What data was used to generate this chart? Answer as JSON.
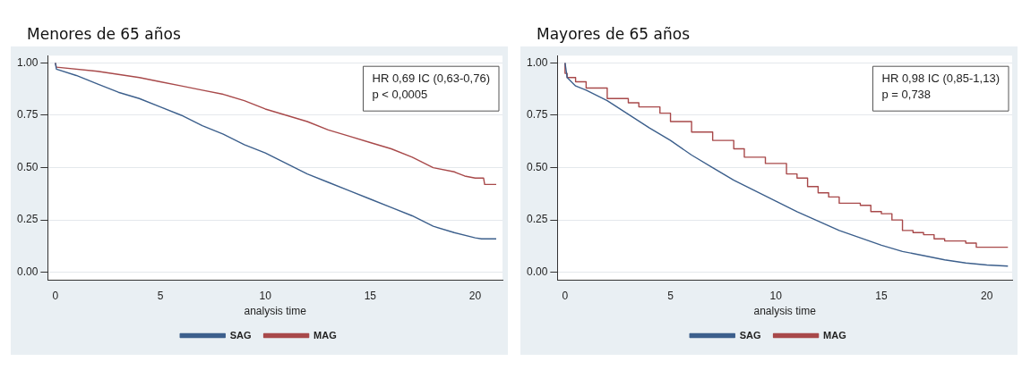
{
  "chart_data": [
    {
      "type": "line",
      "title": "Menores de 65 años",
      "xlabel": "analysis time",
      "annotations": [
        "HR 0,69 IC (0,63-0,76)",
        "p < 0,0005"
      ],
      "xlim": [
        -0.36,
        21.3
      ],
      "ylim": [
        -0.036,
        1.035
      ],
      "xticks": [
        0,
        5,
        10,
        15,
        20
      ],
      "yticks": [
        {
          "value": 0,
          "label": "0.00"
        },
        {
          "value": 0.25,
          "label": "0.25"
        },
        {
          "value": 0.5,
          "label": "0.50"
        },
        {
          "value": 0.75,
          "label": "0.75"
        },
        {
          "value": 1,
          "label": "1.00"
        }
      ],
      "grid": "y",
      "legend": "bottom",
      "marker": "none",
      "series": [
        {
          "name": "SAG",
          "color": "#3c5f8c",
          "x": [
            0,
            0.05,
            1,
            2,
            3,
            4,
            5,
            6,
            7,
            8,
            9,
            10,
            11,
            12,
            13,
            14,
            15,
            16,
            17,
            18,
            19,
            20,
            20.3,
            21
          ],
          "values": [
            1,
            0.97,
            0.94,
            0.9,
            0.86,
            0.83,
            0.79,
            0.75,
            0.7,
            0.66,
            0.61,
            0.57,
            0.52,
            0.47,
            0.43,
            0.39,
            0.35,
            0.31,
            0.27,
            0.22,
            0.19,
            0.165,
            0.16,
            0.16
          ]
        },
        {
          "name": "MAG",
          "color": "#a8494a",
          "x": [
            0,
            0.05,
            2,
            4,
            5,
            6,
            7,
            8,
            9,
            10,
            11,
            12,
            13,
            14,
            15,
            16,
            17,
            18,
            19,
            19.5,
            20,
            20.4,
            20.45,
            21
          ],
          "values": [
            1,
            0.98,
            0.96,
            0.93,
            0.91,
            0.89,
            0.87,
            0.85,
            0.82,
            0.78,
            0.75,
            0.72,
            0.68,
            0.65,
            0.62,
            0.59,
            0.55,
            0.5,
            0.48,
            0.46,
            0.45,
            0.45,
            0.42,
            0.42
          ]
        }
      ]
    },
    {
      "type": "line",
      "title": "Mayores de 65 años",
      "xlabel": "analysis time",
      "annotations": [
        "HR 0,98 IC (0,85-1,13)",
        "p = 0,738"
      ],
      "xlim": [
        -0.36,
        21.2
      ],
      "ylim": [
        -0.036,
        1.035
      ],
      "xticks": [
        0,
        5,
        10,
        15,
        20
      ],
      "yticks": [
        {
          "value": 0,
          "label": "0.00"
        },
        {
          "value": 0.25,
          "label": "0.25"
        },
        {
          "value": 0.5,
          "label": "0.50"
        },
        {
          "value": 0.75,
          "label": "0.75"
        },
        {
          "value": 1,
          "label": "1.00"
        }
      ],
      "grid": "y",
      "legend": "bottom",
      "marker": "none",
      "series": [
        {
          "name": "SAG",
          "color": "#3c5f8c",
          "x": [
            0,
            0.1,
            0.5,
            1,
            2,
            3,
            4,
            5,
            6,
            7,
            8,
            9,
            10,
            11,
            12,
            13,
            14,
            15,
            16,
            17,
            18,
            19,
            20,
            21
          ],
          "values": [
            1,
            0.93,
            0.89,
            0.87,
            0.82,
            0.755,
            0.69,
            0.63,
            0.56,
            0.5,
            0.44,
            0.39,
            0.34,
            0.29,
            0.245,
            0.2,
            0.165,
            0.13,
            0.1,
            0.08,
            0.06,
            0.045,
            0.035,
            0.03
          ]
        },
        {
          "name": "MAG",
          "type": "step",
          "color": "#a8494a",
          "x": [
            0,
            0.1,
            0.5,
            1,
            2,
            3,
            3.5,
            4.5,
            5,
            6,
            7,
            8,
            8.5,
            9.5,
            10.5,
            11,
            11.5,
            12,
            12.5,
            13,
            14,
            14.5,
            15,
            15.5,
            16,
            16.5,
            17,
            17.5,
            18,
            19,
            19.5,
            19.8,
            21
          ],
          "values": [
            1,
            0.95,
            0.93,
            0.91,
            0.88,
            0.83,
            0.81,
            0.79,
            0.76,
            0.72,
            0.67,
            0.63,
            0.59,
            0.55,
            0.52,
            0.47,
            0.45,
            0.41,
            0.38,
            0.36,
            0.33,
            0.32,
            0.29,
            0.28,
            0.25,
            0.2,
            0.19,
            0.18,
            0.16,
            0.15,
            0.14,
            0.12,
            0.12
          ]
        }
      ]
    }
  ]
}
